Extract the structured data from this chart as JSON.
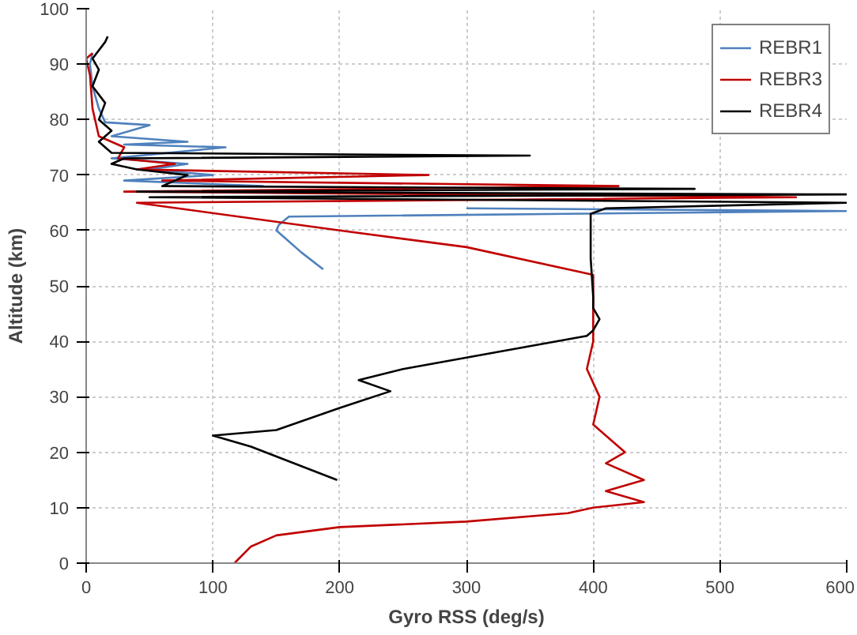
{
  "chart_data": {
    "type": "line",
    "xlabel": "Gyro RSS (deg/s)",
    "ylabel": "Altitude (km)",
    "xlim": [
      0,
      600
    ],
    "ylim": [
      0,
      100
    ],
    "xticks": [
      0,
      100,
      200,
      300,
      400,
      500,
      600
    ],
    "yticks": [
      0,
      10,
      20,
      30,
      40,
      50,
      60,
      70,
      80,
      90,
      100
    ],
    "grid": true,
    "legend": "top right",
    "series": [
      {
        "name": "REBR1",
        "color": "#4f81bd",
        "x": [
          187,
          170,
          155,
          150,
          152,
          160,
          600,
          300,
          null,
          null,
          null,
          140,
          30,
          100,
          50,
          80,
          20,
          110,
          30,
          80,
          20,
          50,
          15,
          10,
          5,
          3,
          5
        ],
        "values": [
          53,
          56,
          59,
          60,
          61,
          62.5,
          63.5,
          64,
          null,
          null,
          null,
          68,
          69,
          70,
          71,
          72,
          73,
          75,
          75.5,
          76,
          77,
          79,
          79.5,
          82,
          86,
          90,
          92
        ]
      },
      {
        "name": "REBR3",
        "color": "#c00000",
        "x": [
          117,
          130,
          150,
          200,
          300,
          380,
          400,
          440,
          410,
          440,
          410,
          425,
          400,
          405,
          395,
          400,
          400,
          400,
          300,
          200,
          40,
          560,
          30,
          420,
          60,
          270,
          40,
          70,
          25,
          30,
          10,
          5,
          3,
          0,
          5
        ],
        "values": [
          0,
          3,
          5,
          6.5,
          7.5,
          9,
          10,
          11,
          13,
          15,
          18,
          20,
          25,
          30,
          35,
          40,
          45,
          52,
          57,
          60,
          65,
          66,
          67,
          68,
          69,
          70,
          71,
          72,
          73,
          75,
          77,
          82,
          88,
          91,
          92
        ]
      },
      {
        "name": "REBR4",
        "color": "#000000",
        "x": [
          198,
          130,
          100,
          150,
          200,
          240,
          215,
          250,
          395,
          400,
          405,
          400,
          400,
          398,
          398,
          410,
          600,
          50,
          600,
          40,
          480,
          60,
          80,
          40,
          20,
          30,
          350,
          20,
          10,
          20,
          10,
          15,
          5,
          10,
          5,
          15,
          17
        ],
        "values": [
          15,
          21,
          23,
          24,
          28,
          31,
          33,
          35,
          41,
          42,
          44,
          46,
          48,
          55,
          63,
          64,
          65,
          66,
          66.5,
          67,
          67.5,
          68,
          70,
          71,
          72,
          73,
          73.5,
          74,
          76,
          78,
          80,
          83,
          86,
          89,
          91,
          94,
          95
        ]
      }
    ]
  }
}
